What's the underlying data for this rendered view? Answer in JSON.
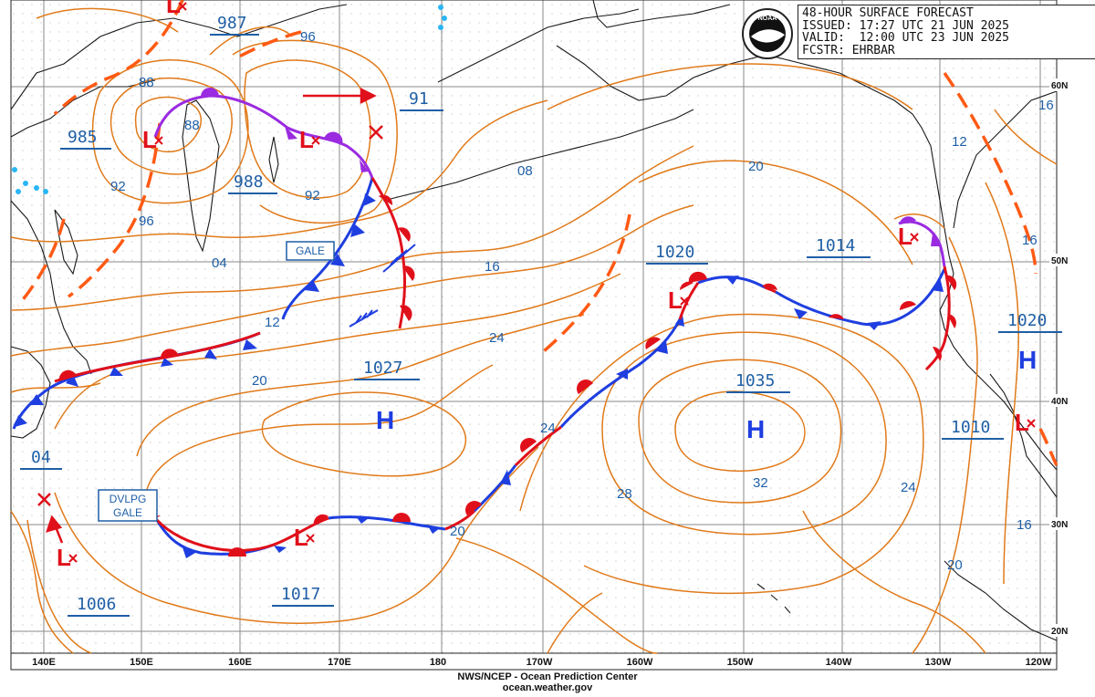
{
  "header": {
    "title": "48-HOUR SURFACE FORECAST",
    "issued": "ISSUED: 17:27 UTC 21 JUN 2025",
    "valid": "VALID:  12:00 UTC 23 JUN 2025",
    "forecaster": "FCSTR: EHRBAR",
    "logo_text": "NOAA"
  },
  "footer": {
    "agency": "NWS/NCEP - Ocean Prediction Center",
    "site": "ocean.weather.gov"
  },
  "axes": {
    "longitude_labels": [
      "140E",
      "150E",
      "160E",
      "170E",
      "180",
      "170W",
      "160W",
      "150W",
      "140W",
      "130W",
      "120W"
    ],
    "latitude_labels": [
      "60N",
      "50N",
      "40N",
      "30N",
      "20N"
    ]
  },
  "systems": {
    "highs": [
      {
        "symbol": "H",
        "pressure": "1027"
      },
      {
        "symbol": "H",
        "pressure": "1035"
      },
      {
        "symbol": "H",
        "pressure": "1020"
      }
    ],
    "lows": [
      {
        "symbol": "L",
        "pressure": "985"
      },
      {
        "symbol": "L",
        "pressure": "988"
      },
      {
        "symbol": "L",
        "pressure": "987"
      },
      {
        "symbol": "L",
        "pressure": "91"
      },
      {
        "symbol": "L",
        "pressure": "1020"
      },
      {
        "symbol": "L",
        "pressure": "1014"
      },
      {
        "symbol": "L",
        "pressure": "1010"
      },
      {
        "symbol": "L",
        "pressure": "1017"
      },
      {
        "symbol": "L",
        "pressure": "1006"
      },
      {
        "symbol": "L",
        "pressure": "04"
      }
    ]
  },
  "warnings": [
    "GALE",
    "DVLPG\nGALE"
  ],
  "isobar_labels": [
    "96",
    "88",
    "88",
    "92",
    "96",
    "92",
    "04",
    "12",
    "20",
    "08",
    "16",
    "24",
    "20",
    "16",
    "24",
    "28",
    "32",
    "24",
    "20",
    "16",
    "12",
    "16"
  ],
  "colors": {
    "isobar": "#e07a1a",
    "cold_front": "#1e3ee0",
    "warm_front": "#e0101a",
    "occluded_front": "#9a2be0",
    "trough": "#ff5a14",
    "low_center": "#e0101a",
    "high_center": "#1e3ee0",
    "label": "#1f5fa6",
    "coast": "#1a1a1a",
    "grid": "#8a8a8a",
    "ice": "#29b6f6"
  }
}
